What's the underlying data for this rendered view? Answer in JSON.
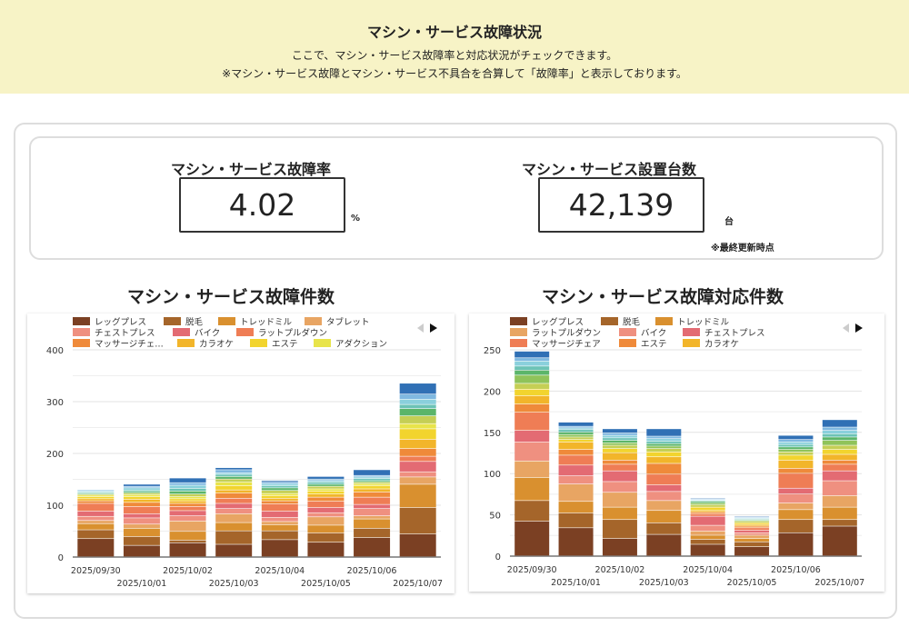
{
  "header": {
    "title": "マシン・サービス故障状況",
    "subtitle": "ここで、マシン・サービス故障率と対応状況がチェックできます。",
    "note": "※マシン・サービス故障とマシン・サービス不具合を合算して「故障率」と表示しております。"
  },
  "kpi": {
    "rate_label": "マシン・サービス故障率",
    "rate_value": "4.02",
    "rate_unit": "%",
    "count_label": "マシン・サービス設置台数",
    "count_value": "42,139",
    "count_unit": "台",
    "updated_note": "※最終更新時点"
  },
  "colors": {
    "header_bg": "#f7f3c6",
    "palette": [
      "#7b4023",
      "#a5652a",
      "#d9902f",
      "#e8a563",
      "#ef9080",
      "#e36b73",
      "#ef7d55",
      "#ef8a3a",
      "#f2b52a",
      "#f2d42e",
      "#e8e44a",
      "#c5cf55",
      "#8fc35a",
      "#5bb56a",
      "#6cc3b6",
      "#8ad0dc",
      "#7fb8e0",
      "#3070b5"
    ]
  },
  "chart_data": [
    {
      "type": "bar",
      "stacked": true,
      "title": "マシン・サービス故障件数",
      "ylim": [
        0,
        400
      ],
      "yticks": [
        0,
        100,
        200,
        300,
        400
      ],
      "grid": true,
      "legend": "top",
      "categories": [
        "2025/09/30",
        "2025/10/01",
        "2025/10/02",
        "2025/10/03",
        "2025/10/04",
        "2025/10/05",
        "2025/10/06",
        "2025/10/07"
      ],
      "series": [
        {
          "name": "レッグプレス",
          "color": "#7b4023",
          "values": [
            35,
            22,
            27,
            24,
            33,
            28,
            37,
            44
          ]
        },
        {
          "name": "脱毛",
          "color": "#a5652a",
          "values": [
            17,
            17,
            5,
            26,
            17,
            18,
            18,
            51
          ]
        },
        {
          "name": "トレッドミル",
          "color": "#d9902f",
          "values": [
            12,
            16,
            17,
            16,
            12,
            15,
            18,
            45
          ]
        },
        {
          "name": "タブレット",
          "color": "#e8a563",
          "values": [
            6,
            8,
            20,
            17,
            6,
            16,
            6,
            14
          ]
        },
        {
          "name": "チェストプレス",
          "color": "#ef9080",
          "values": [
            8,
            12,
            10,
            10,
            8,
            8,
            14,
            10
          ]
        },
        {
          "name": "バイク",
          "color": "#e36b73",
          "values": [
            10,
            8,
            10,
            10,
            12,
            10,
            8,
            20
          ]
        },
        {
          "name": "ラットプルダウン",
          "color": "#ef7d55",
          "values": [
            15,
            14,
            8,
            10,
            14,
            12,
            14,
            10
          ]
        },
        {
          "name": "マッサージチェ…",
          "color": "#ef8a3a",
          "values": [
            5,
            8,
            6,
            10,
            6,
            8,
            10,
            15
          ]
        },
        {
          "name": "カラオケ",
          "color": "#f2b52a",
          "values": [
            4,
            6,
            5,
            6,
            5,
            6,
            6,
            18
          ]
        },
        {
          "name": "エステ",
          "color": "#f2d42e",
          "values": [
            4,
            5,
            4,
            8,
            5,
            6,
            6,
            20
          ]
        },
        {
          "name": "アダクション",
          "color": "#e8e44a",
          "values": [
            3,
            4,
            4,
            7,
            4,
            4,
            4,
            10
          ]
        },
        {
          "color": "#c5cf55",
          "values": [
            2,
            3,
            5,
            6,
            6,
            5,
            3,
            15
          ]
        },
        {
          "color": "#5bb56a",
          "values": [
            2,
            3,
            6,
            5,
            5,
            4,
            3,
            14
          ]
        },
        {
          "color": "#6cc3b6",
          "values": [
            2,
            3,
            5,
            4,
            4,
            4,
            4,
            8
          ]
        },
        {
          "color": "#8ad0dc",
          "values": [
            2,
            4,
            6,
            3,
            4,
            3,
            3,
            10
          ]
        },
        {
          "color": "#7fb8e0",
          "values": [
            2,
            3,
            5,
            6,
            3,
            3,
            3,
            10
          ]
        },
        {
          "color": "#3070b5",
          "values": [
            1,
            4,
            9,
            4,
            3,
            5,
            11,
            21
          ]
        }
      ]
    },
    {
      "type": "bar",
      "stacked": true,
      "title": "マシン・サービス故障対応件数",
      "ylim": [
        0,
        250
      ],
      "yticks": [
        0,
        50,
        100,
        150,
        200,
        250
      ],
      "grid": true,
      "legend": "top",
      "categories": [
        "2025/09/30",
        "2025/10/01",
        "2025/10/02",
        "2025/10/03",
        "2025/10/04",
        "2025/10/05",
        "2025/10/06",
        "2025/10/07"
      ],
      "series": [
        {
          "name": "レッグプレス",
          "color": "#7b4023",
          "values": [
            42,
            34,
            21,
            26,
            14,
            11,
            28,
            36
          ]
        },
        {
          "name": "脱毛",
          "color": "#a5652a",
          "values": [
            25,
            18,
            23,
            14,
            6,
            6,
            16,
            8
          ]
        },
        {
          "name": "トレッドミル",
          "color": "#d9902f",
          "values": [
            28,
            14,
            15,
            15,
            5,
            4,
            12,
            15
          ]
        },
        {
          "name": "ラットプルダウン",
          "color": "#e8a563",
          "values": [
            20,
            21,
            18,
            12,
            5,
            4,
            8,
            14
          ]
        },
        {
          "name": "バイク",
          "color": "#ef9080",
          "values": [
            23,
            10,
            13,
            11,
            7,
            3,
            11,
            18
          ]
        },
        {
          "name": "チェストプレス",
          "color": "#e36b73",
          "values": [
            14,
            13,
            13,
            8,
            11,
            3,
            7,
            12
          ]
        },
        {
          "name": "マッサージチェア",
          "color": "#ef7d55",
          "values": [
            22,
            12,
            8,
            13,
            3,
            3,
            18,
            8
          ]
        },
        {
          "name": "エステ",
          "color": "#ef8a3a",
          "values": [
            10,
            7,
            5,
            13,
            2,
            2,
            6,
            5
          ]
        },
        {
          "name": "カラオケ",
          "color": "#f2b52a",
          "values": [
            10,
            9,
            9,
            8,
            2,
            2,
            10,
            7
          ]
        },
        {
          "color": "#f2d42e",
          "values": [
            8,
            3,
            5,
            6,
            4,
            2,
            6,
            6
          ]
        },
        {
          "color": "#c5cf55",
          "values": [
            7,
            3,
            4,
            4,
            3,
            2,
            4,
            5
          ]
        },
        {
          "color": "#8fc35a",
          "values": [
            10,
            3,
            3,
            3,
            2,
            1,
            3,
            6
          ]
        },
        {
          "color": "#5bb56a",
          "values": [
            6,
            3,
            3,
            3,
            2,
            1,
            3,
            4
          ]
        },
        {
          "color": "#6cc3b6",
          "values": [
            5,
            3,
            3,
            3,
            1,
            1,
            3,
            4
          ]
        },
        {
          "color": "#8ad0dc",
          "values": [
            6,
            2,
            3,
            3,
            1,
            1,
            3,
            4
          ]
        },
        {
          "color": "#7fb8e0",
          "values": [
            4,
            2,
            3,
            3,
            1,
            1,
            3,
            4
          ]
        },
        {
          "color": "#3070b5",
          "values": [
            8,
            5,
            5,
            9,
            1,
            1,
            5,
            9
          ]
        }
      ]
    }
  ]
}
